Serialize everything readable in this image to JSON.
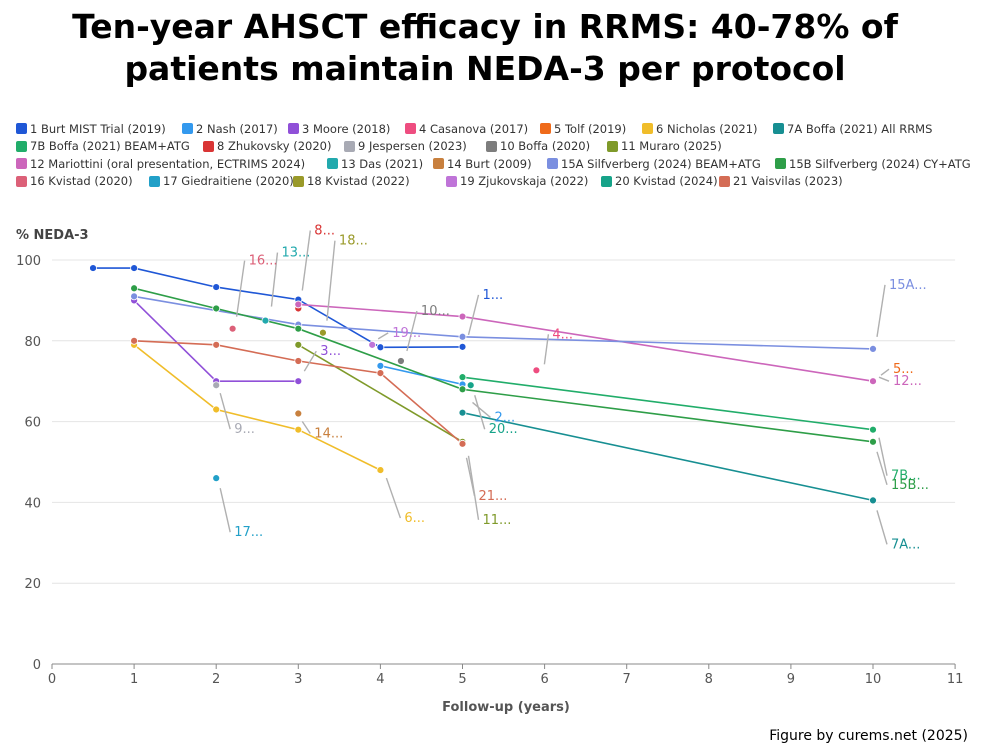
{
  "title_lines": [
    "Ten-year AHSCT efficacy in RRMS: 40-78% of",
    "patients maintain NEDA-3 per protocol"
  ],
  "credit": "Figure by curems.net (2025)",
  "chart_data": {
    "type": "line",
    "ylabel": "% NEDA-3",
    "xlabel": "Follow-up (years)",
    "xlim": [
      0,
      11
    ],
    "ylim": [
      0,
      100
    ],
    "xticks": [
      "0",
      "1",
      "2",
      "3",
      "4",
      "5",
      "6",
      "7",
      "8",
      "9",
      "10",
      "11"
    ],
    "yticks": [
      "0",
      "20",
      "40",
      "60",
      "80",
      "100"
    ],
    "series": [
      {
        "name": "1 Burt MIST Trial (2019)",
        "color": "#1f57d6",
        "label": "1...",
        "points": [
          [
            0.5,
            98
          ],
          [
            1,
            98
          ],
          [
            2,
            93.3
          ],
          [
            3,
            90.2
          ],
          [
            4,
            78.4
          ],
          [
            5,
            78.5
          ]
        ]
      },
      {
        "name": "2 Nash (2017)",
        "color": "#3399ee",
        "label": "2...",
        "points": [
          [
            4,
            73.8
          ],
          [
            5,
            69.2
          ]
        ]
      },
      {
        "name": "3 Moore (2018)",
        "color": "#9050d8",
        "label": "3...",
        "points": [
          [
            1,
            90
          ],
          [
            2,
            70
          ],
          [
            3,
            70
          ]
        ]
      },
      {
        "name": "4 Casanova (2017)",
        "color": "#ee4d80",
        "label": "4...",
        "points": [
          [
            5.9,
            72.7
          ]
        ]
      },
      {
        "name": "5 Tolf (2019)",
        "color": "#ef6a1a",
        "label": "5...",
        "points": [
          [
            10,
            70
          ]
        ]
      },
      {
        "name": "6 Nicholas (2021)",
        "color": "#f0bd2a",
        "label": "6...",
        "points": [
          [
            1,
            79
          ],
          [
            2,
            63
          ],
          [
            3,
            58
          ],
          [
            4,
            48
          ]
        ]
      },
      {
        "name": "7A Boffa (2021) All RRMS",
        "color": "#178f92",
        "label": "7A...",
        "points": [
          [
            5,
            62.2
          ],
          [
            10,
            40.5
          ]
        ]
      },
      {
        "name": "7B Boffa (2021) BEAM+ATG",
        "color": "#21ad6a",
        "label": "7B...",
        "points": [
          [
            5,
            71
          ],
          [
            10,
            58
          ]
        ]
      },
      {
        "name": "8 Zhukovsky (2020)",
        "color": "#d93535",
        "label": "8...",
        "points": [
          [
            3,
            88
          ]
        ]
      },
      {
        "name": "9 Jespersen (2023)",
        "color": "#a8aab4",
        "label": "9...",
        "points": [
          [
            2,
            69
          ]
        ]
      },
      {
        "name": "10 Boffa (2020)",
        "color": "#7d7d7d",
        "label": "10...",
        "points": [
          [
            4.25,
            75
          ]
        ]
      },
      {
        "name": "11 Muraro (2025)",
        "color": "#7f9a2a",
        "label": "11...",
        "points": [
          [
            3,
            79
          ],
          [
            5,
            55
          ]
        ]
      },
      {
        "name": "12 Mariottini (oral presentation, ECTRIMS 2024)",
        "color": "#cc66bb",
        "label": "12...",
        "points": [
          [
            3,
            89
          ],
          [
            5,
            86
          ],
          [
            10,
            70
          ]
        ]
      },
      {
        "name": "13 Das (2021)",
        "color": "#22a9ad",
        "label": "13...",
        "points": [
          [
            2.6,
            85
          ]
        ]
      },
      {
        "name": "14 Burt (2009)",
        "color": "#c8803e",
        "label": "14...",
        "points": [
          [
            3,
            62
          ]
        ]
      },
      {
        "name": "15A Silfverberg (2024) BEAM+ATG",
        "color": "#7b8fe0",
        "label": "15A...",
        "points": [
          [
            1,
            91
          ],
          [
            3,
            84
          ],
          [
            5,
            81
          ],
          [
            10,
            78
          ]
        ]
      },
      {
        "name": "15B Silfverberg (2024) CY+ATG",
        "color": "#2e9e48",
        "label": "15B...",
        "points": [
          [
            1,
            93
          ],
          [
            2,
            88
          ],
          [
            3,
            83
          ],
          [
            5,
            68
          ],
          [
            10,
            55
          ]
        ]
      },
      {
        "name": "16 Kvistad (2020)",
        "color": "#dc6078",
        "label": "16...",
        "points": [
          [
            2.2,
            83
          ]
        ]
      },
      {
        "name": "17 Giedraitiene (2020)",
        "color": "#22a0c8",
        "label": "17...",
        "points": [
          [
            2,
            46
          ]
        ]
      },
      {
        "name": "18 Kvistad (2022)",
        "color": "#9a9a2a",
        "label": "18...",
        "points": [
          [
            3.3,
            82
          ]
        ]
      },
      {
        "name": "19 Zjukovskaja (2022)",
        "color": "#bf74d8",
        "label": "19...",
        "points": [
          [
            3.9,
            79
          ]
        ]
      },
      {
        "name": "20 Kvistad (2024)",
        "color": "#16a389",
        "label": "20...",
        "points": [
          [
            5.1,
            69
          ]
        ]
      },
      {
        "name": "21 Vaisvilas (2023)",
        "color": "#d46c55",
        "label": "21...",
        "points": [
          [
            1,
            80
          ],
          [
            2,
            79
          ],
          [
            3,
            75
          ],
          [
            4,
            72
          ],
          [
            5,
            54.5
          ]
        ]
      }
    ]
  }
}
